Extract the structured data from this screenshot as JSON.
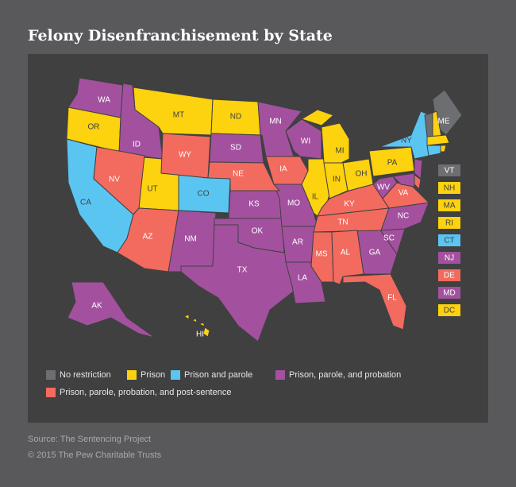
{
  "title": "Felony Disenfranchisement by State",
  "legend": [
    {
      "name": "No restriction",
      "color": "#6d6e71",
      "states": [
        "ME"
      ]
    },
    {
      "name": "Prison",
      "color": "#fdd20e",
      "states": [
        "OR",
        "MT",
        "ND",
        "UT",
        "IL",
        "MI",
        "IN",
        "OH",
        "PA",
        "HI"
      ]
    },
    {
      "name": "Prison and parole",
      "color": "#5bc5f2",
      "states": [
        "CA",
        "CO",
        "NY"
      ]
    },
    {
      "name": "Prison, parole, and probation",
      "color": "#a3519f",
      "states": [
        "WA",
        "ID",
        "MN",
        "SD",
        "WI",
        "KS",
        "NM",
        "OK",
        "MO",
        "TX",
        "AR",
        "LA",
        "GA",
        "SC",
        "NC",
        "WV",
        "AK"
      ]
    },
    {
      "name": "Prison, parole, probation, and post-sentence",
      "color": "#f26b5e",
      "states": [
        "NV",
        "WY",
        "NE",
        "IA",
        "AZ",
        "KY",
        "TN",
        "MS",
        "AL",
        "FL",
        "VA"
      ]
    }
  ],
  "inset": [
    {
      "label": "VT",
      "color": "#6d6e71"
    },
    {
      "label": "NH",
      "color": "#fdd20e"
    },
    {
      "label": "MA",
      "color": "#fdd20e"
    },
    {
      "label": "RI",
      "color": "#fdd20e"
    },
    {
      "label": "CT",
      "color": "#5bc5f2"
    },
    {
      "label": "NJ",
      "color": "#a3519f"
    },
    {
      "label": "DE",
      "color": "#f26b5e"
    },
    {
      "label": "MD",
      "color": "#a3519f"
    },
    {
      "label": "DC",
      "color": "#fdd20e"
    }
  ],
  "source": "Source: The Sentencing Project",
  "copyright": "© 2015 The Pew Charitable Trusts"
}
